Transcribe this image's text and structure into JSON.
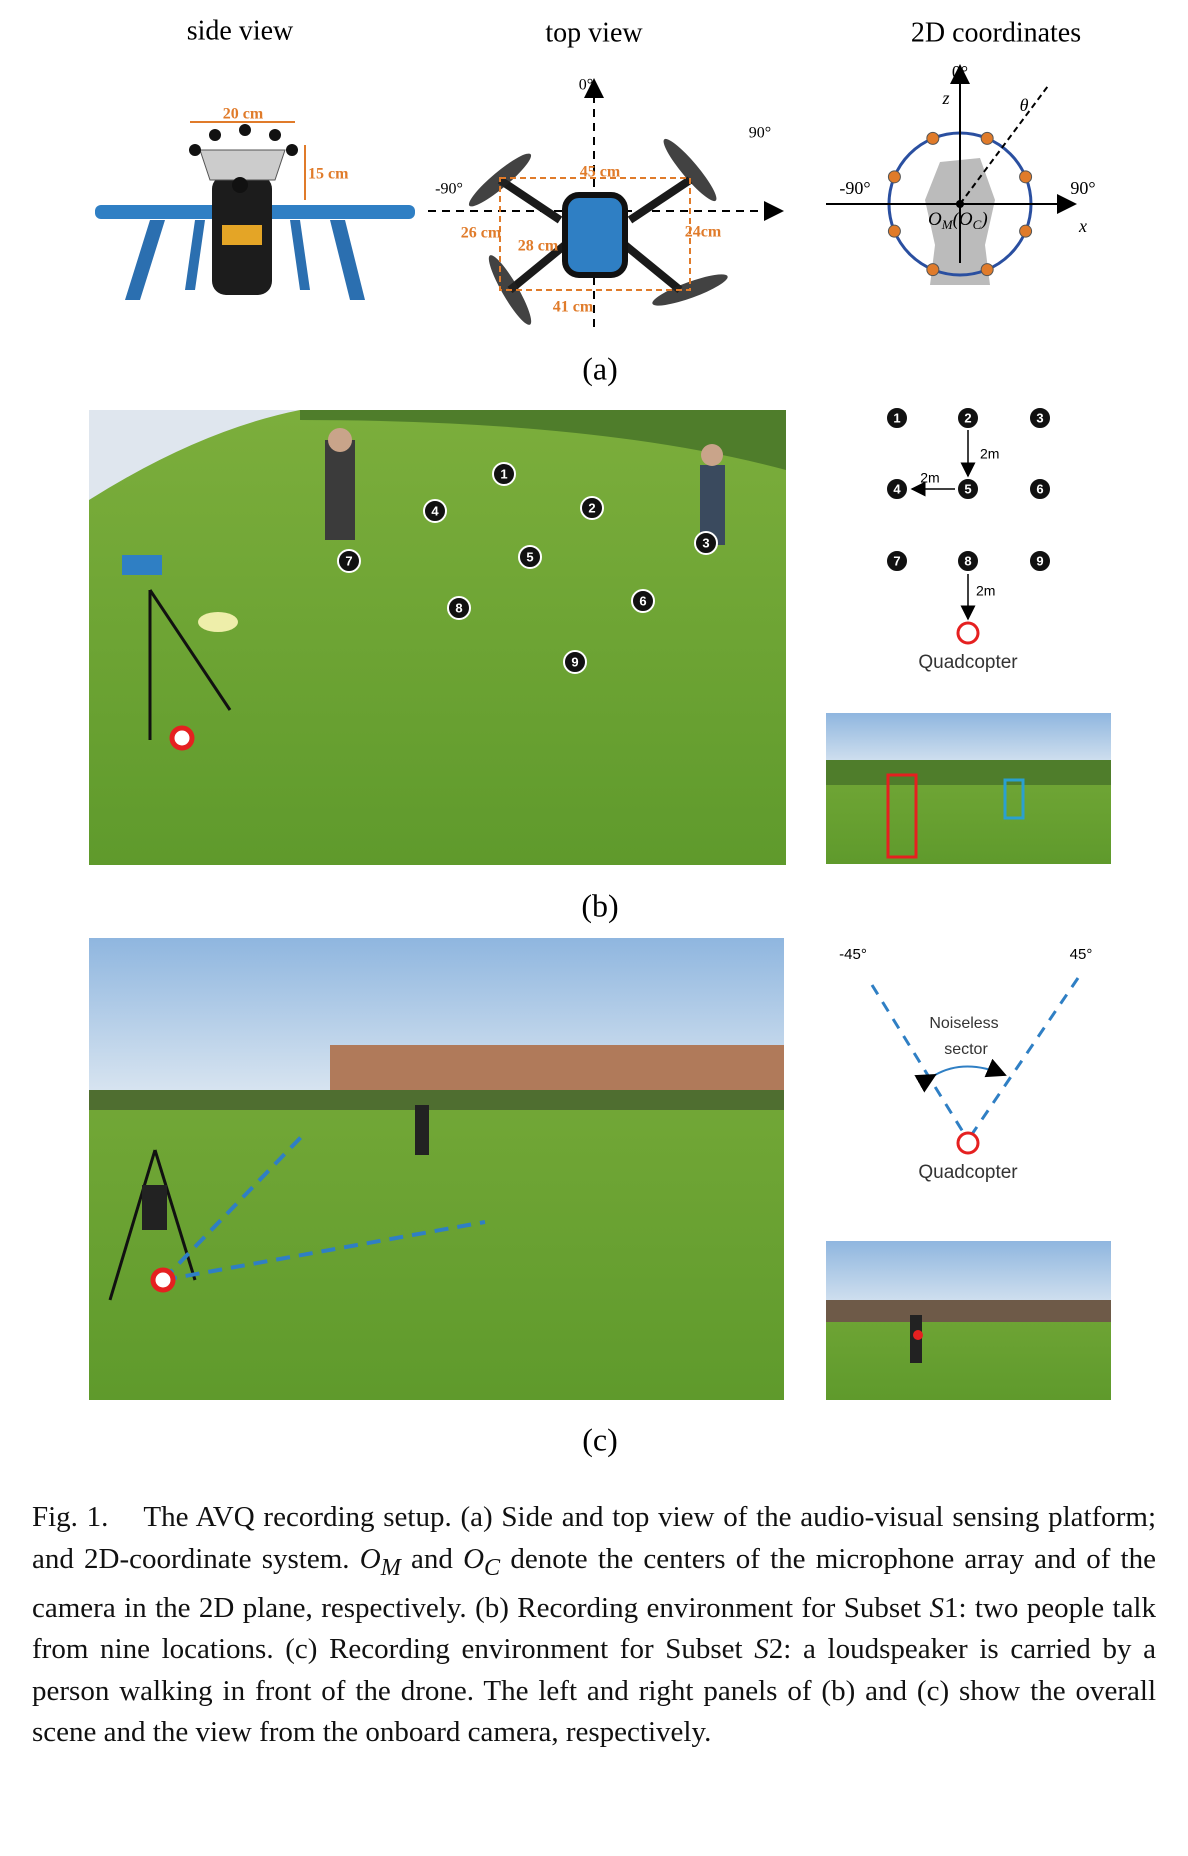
{
  "panel_a": {
    "titles": [
      "side view",
      "top view",
      "2D coordinates"
    ],
    "side_view": [
      "20 cm",
      "15 cm"
    ],
    "top_view": [
      "0°",
      "90°",
      "-90°",
      "45 cm",
      "26 cm",
      "28 cm",
      "24cm",
      "41 cm"
    ],
    "coords": [
      "0°",
      "z",
      "θ",
      "-90°",
      "90°",
      "x",
      "O",
      "M",
      "(O",
      "C",
      ")"
    ],
    "label": "(a)"
  },
  "panel_b": {
    "locations": [
      "1",
      "2",
      "3",
      "4",
      "5",
      "6",
      "7",
      "8",
      "9"
    ],
    "distances": [
      "2m",
      "2m",
      "2m"
    ],
    "quadcopter": "Quadcopter",
    "label": "(b)"
  },
  "panel_c": {
    "angles": [
      "-45°",
      "45°"
    ],
    "sector": [
      "Noiseless",
      "sector"
    ],
    "quadcopter": "Quadcopter",
    "label": "(c)"
  },
  "caption": [
    "Fig. 1.",
    "The AVQ recording setup. (a) Side and top view of the audio-visual sensing platform; and 2D-coordinate system. ",
    "O",
    "M",
    " and ",
    "O",
    "C",
    " denote the centers of the microphone array and of the camera in the 2D plane, respectively. (b) Recording environment for Subset ",
    "S",
    "1: two people talk from nine locations. (c) Recording environment for Subset ",
    "S",
    "2: a loudspeaker is carried by a person walking in front of the drone. The left and right panels of (b) and (c) show the overall scene and the view from the onboard camera, respectively."
  ]
}
